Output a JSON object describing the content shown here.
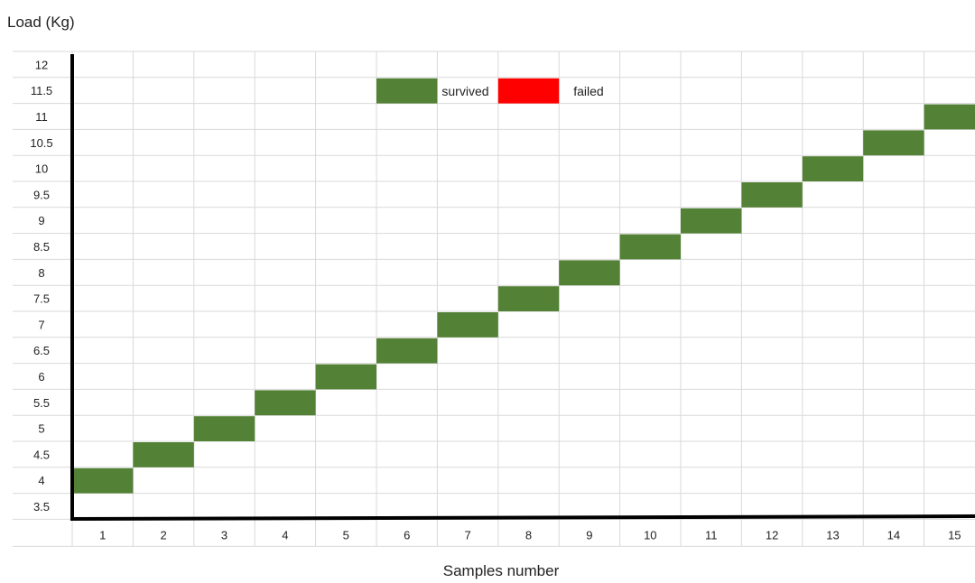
{
  "chart_data": {
    "type": "table",
    "title": "",
    "ylabel": "Load (Kg)",
    "xlabel": "Samples number",
    "y_ticks": [
      "3.5",
      "4",
      "4.5",
      "5",
      "5.5",
      "6",
      "6.5",
      "7",
      "7.5",
      "8",
      "8.5",
      "9",
      "9.5",
      "10",
      "10.5",
      "11",
      "11.5",
      "12"
    ],
    "x_ticks": [
      "1",
      "2",
      "3",
      "4",
      "5",
      "6",
      "7",
      "8",
      "9",
      "10",
      "11",
      "12",
      "13",
      "14",
      "15"
    ],
    "ylim": [
      3.5,
      12
    ],
    "grid": true,
    "legend_position": "top-center",
    "legend": [
      {
        "label": "survived",
        "color": "#538135"
      },
      {
        "label": "failed",
        "color": "#ff0000"
      }
    ],
    "series": [
      {
        "name": "survived",
        "color": "#538135",
        "samples": [
          1,
          2,
          3,
          4,
          5,
          6,
          7,
          8,
          9,
          10,
          11,
          12,
          13,
          14,
          15
        ],
        "loads": [
          4,
          4.5,
          5,
          5.5,
          6,
          6.5,
          7,
          7.5,
          8,
          8.5,
          9,
          9.5,
          10,
          10.5,
          11
        ]
      }
    ],
    "grid_color": "#d9d9d9",
    "axis_color": "#000000"
  }
}
